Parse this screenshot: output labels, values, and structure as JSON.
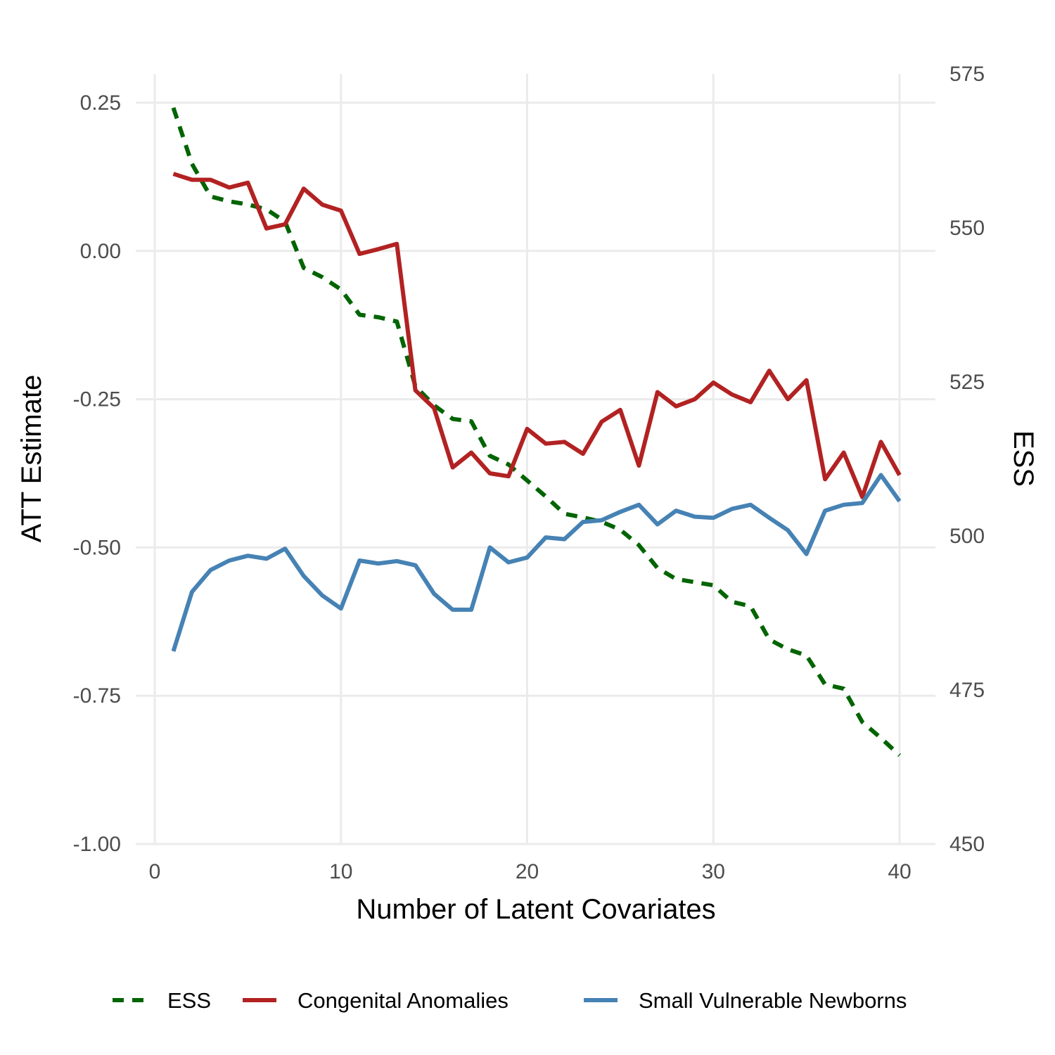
{
  "chart_data": {
    "type": "line",
    "xlabel": "Number of Latent Covariates",
    "ylabel": "ATT Estimate",
    "y2label": "ESS",
    "xlim": [
      0,
      40
    ],
    "ylim": [
      -1.0,
      0.25
    ],
    "y2lim": [
      450,
      575
    ],
    "xticks": [
      "0",
      "10",
      "20",
      "30",
      "40"
    ],
    "yticks": [
      "0.25",
      "0.00",
      "-0.25",
      "-0.50",
      "-0.75",
      "-1.00"
    ],
    "y2ticks": [
      "575",
      "550",
      "525",
      "500",
      "475",
      "450"
    ],
    "grid": true,
    "legend_position": "bottom",
    "x": [
      1,
      2,
      3,
      4,
      5,
      6,
      7,
      8,
      9,
      10,
      11,
      12,
      13,
      14,
      15,
      16,
      17,
      18,
      19,
      20,
      21,
      22,
      23,
      24,
      25,
      26,
      27,
      28,
      29,
      30,
      31,
      32,
      33,
      34,
      35,
      36,
      37,
      38,
      39,
      40
    ],
    "series": [
      {
        "name": "ESS",
        "axis": "right",
        "style": "dashed",
        "color": "#006400",
        "values": [
          569.5,
          560.4,
          555.1,
          554.3,
          553.8,
          553.0,
          551.0,
          543.5,
          542.0,
          540.0,
          535.9,
          535.5,
          534.8,
          524.3,
          521.2,
          519.0,
          518.6,
          513.0,
          511.6,
          509.0,
          506.4,
          503.6,
          503.0,
          502.3,
          501.0,
          498.5,
          494.8,
          493.0,
          492.5,
          492.0,
          489.3,
          488.6,
          483.2,
          481.6,
          480.6,
          475.9,
          475.2,
          469.8,
          467.2,
          464.4
        ]
      },
      {
        "name": "Congenital Anomalies",
        "axis": "left",
        "style": "solid",
        "color": "#b22222",
        "values": [
          0.13,
          0.12,
          0.12,
          0.107,
          0.115,
          0.038,
          0.045,
          0.105,
          0.078,
          0.068,
          -0.005,
          0.003,
          0.012,
          -0.235,
          -0.265,
          -0.365,
          -0.34,
          -0.375,
          -0.38,
          -0.3,
          -0.325,
          -0.322,
          -0.342,
          -0.288,
          -0.268,
          -0.362,
          -0.238,
          -0.262,
          -0.25,
          -0.222,
          -0.242,
          -0.255,
          -0.202,
          -0.25,
          -0.218,
          -0.385,
          -0.34,
          -0.415,
          -0.322,
          -0.378
        ]
      },
      {
        "name": "Small Vulnerable Newborns",
        "axis": "left",
        "style": "solid",
        "color": "#4682b4",
        "values": [
          -0.675,
          -0.575,
          -0.538,
          -0.522,
          -0.514,
          -0.519,
          -0.502,
          -0.548,
          -0.581,
          -0.603,
          -0.522,
          -0.527,
          -0.523,
          -0.53,
          -0.578,
          -0.605,
          -0.605,
          -0.5,
          -0.525,
          -0.517,
          -0.483,
          -0.486,
          -0.457,
          -0.454,
          -0.44,
          -0.428,
          -0.461,
          -0.438,
          -0.448,
          -0.45,
          -0.435,
          -0.428,
          -0.45,
          -0.471,
          -0.511,
          -0.438,
          -0.428,
          -0.425,
          -0.378,
          -0.422
        ]
      }
    ]
  }
}
